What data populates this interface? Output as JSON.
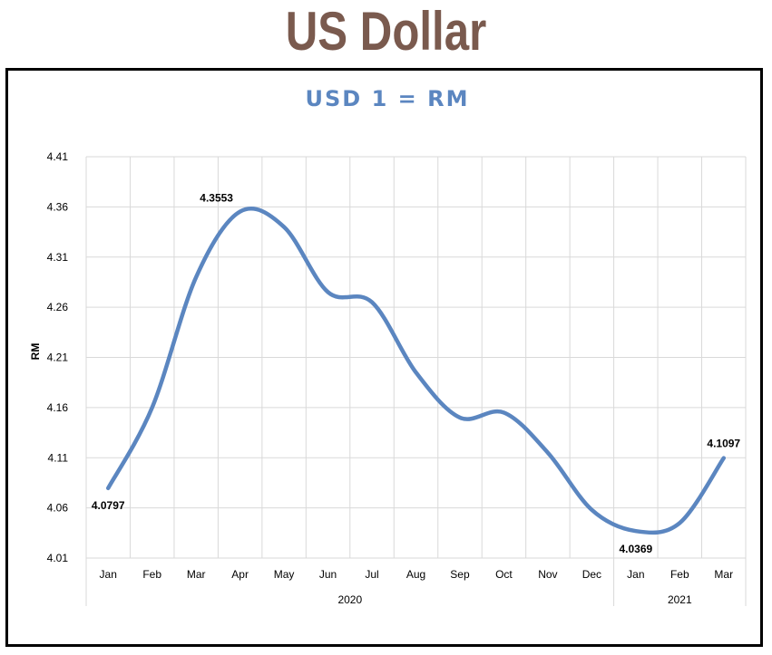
{
  "page": {
    "title": "US Dollar"
  },
  "colors": {
    "title": "#7a5a4e",
    "series": "#5b86c0",
    "grid": "#d9d9d9"
  },
  "chart_data": {
    "type": "line",
    "title": "USD 1 = RM",
    "xlabel": "",
    "ylabel": "RM",
    "ylim": [
      4.01,
      4.41
    ],
    "yticks": [
      "4.41",
      "4.36",
      "4.31",
      "4.26",
      "4.21",
      "4.16",
      "4.11",
      "4.06",
      "4.01"
    ],
    "categories": [
      "Jan",
      "Feb",
      "Mar",
      "Apr",
      "May",
      "Jun",
      "Jul",
      "Aug",
      "Sep",
      "Oct",
      "Nov",
      "Dec",
      "Jan",
      "Feb",
      "Mar"
    ],
    "year_groups": [
      {
        "label": "2020",
        "count": 12
      },
      {
        "label": "2021",
        "count": 3
      }
    ],
    "series": [
      {
        "values": [
          4.0797,
          4.16,
          4.29,
          4.3553,
          4.34,
          4.275,
          4.265,
          4.195,
          4.15,
          4.155,
          4.115,
          4.058,
          4.0369,
          4.045,
          4.1097
        ]
      }
    ],
    "data_labels": [
      {
        "index": 0,
        "text": "4.0797"
      },
      {
        "index": 3,
        "text": "4.3553"
      },
      {
        "index": 12,
        "text": "4.0369"
      },
      {
        "index": 14,
        "text": "4.1097"
      }
    ],
    "grid": true,
    "legend": "none"
  }
}
